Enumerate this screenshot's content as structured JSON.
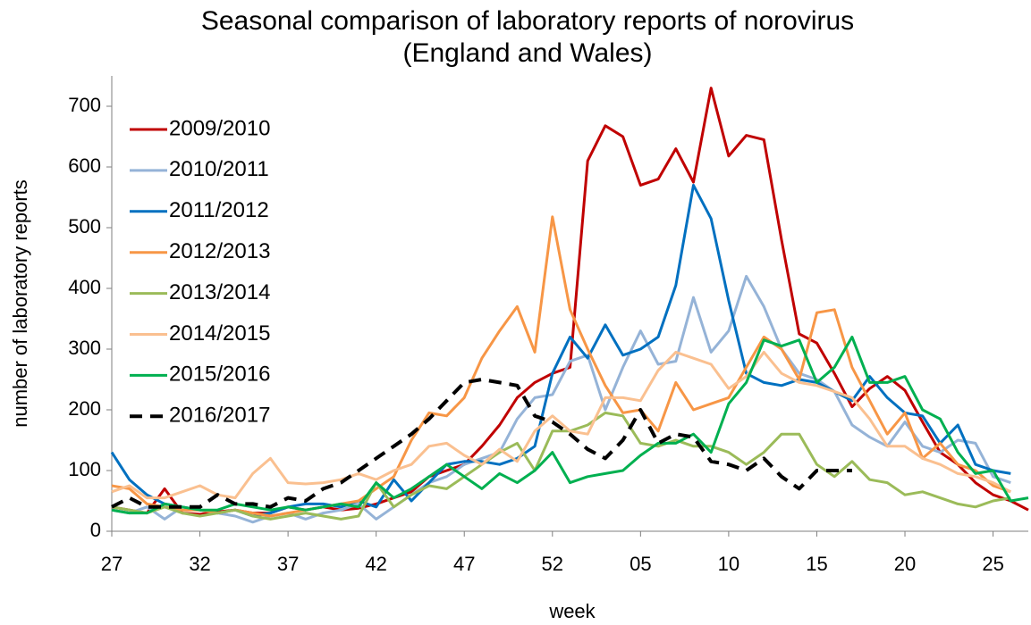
{
  "chart_data": {
    "type": "line",
    "title": "Seasonal comparison of laboratory reports of norovirus (England and Wales)",
    "x_label": "week",
    "y_label": "number of laboratory reports",
    "categories": [
      "27",
      null,
      null,
      null,
      null,
      "32",
      null,
      null,
      null,
      null,
      "37",
      null,
      null,
      null,
      null,
      "42",
      null,
      null,
      null,
      null,
      "47",
      null,
      null,
      null,
      null,
      "52",
      null,
      null,
      null,
      null,
      "05",
      null,
      null,
      null,
      null,
      "10",
      null,
      null,
      null,
      null,
      "15",
      null,
      null,
      null,
      null,
      "20",
      null,
      null,
      null,
      null,
      "25",
      null,
      null
    ],
    "ylim": [
      0,
      750
    ],
    "yticks": [
      0,
      100,
      200,
      300,
      400,
      500,
      600,
      700
    ],
    "legend": "upper left",
    "series": [
      {
        "name": "2009/2010",
        "color": "#c00000",
        "values": [
          40,
          35,
          30,
          70,
          30,
          28,
          32,
          35,
          30,
          30,
          40,
          35,
          40,
          35,
          38,
          45,
          55,
          65,
          90,
          100,
          110,
          140,
          175,
          220,
          245,
          260,
          270,
          610,
          668,
          650,
          570,
          580,
          630,
          575,
          730,
          618,
          652,
          645,
          480,
          325,
          310,
          260,
          205,
          235,
          255,
          232,
          180,
          130,
          110,
          80,
          60,
          50,
          35
        ]
      },
      {
        "name": "2010/2011",
        "color": "#95b3d7",
        "values": [
          35,
          30,
          40,
          20,
          40,
          35,
          30,
          25,
          15,
          25,
          30,
          20,
          30,
          35,
          45,
          20,
          40,
          60,
          80,
          90,
          110,
          120,
          130,
          185,
          220,
          225,
          280,
          290,
          200,
          270,
          330,
          275,
          280,
          385,
          295,
          330,
          420,
          370,
          300,
          260,
          250,
          230,
          175,
          155,
          140,
          180,
          140,
          130,
          150,
          145,
          90,
          80,
          null
        ]
      },
      {
        "name": "2011/2012",
        "color": "#0070c0",
        "values": [
          130,
          85,
          60,
          45,
          40,
          35,
          30,
          35,
          25,
          30,
          40,
          45,
          45,
          40,
          50,
          40,
          85,
          50,
          80,
          110,
          115,
          115,
          110,
          120,
          140,
          260,
          320,
          285,
          340,
          290,
          300,
          320,
          405,
          570,
          515,
          380,
          260,
          245,
          240,
          250,
          245,
          230,
          215,
          255,
          220,
          195,
          190,
          145,
          175,
          110,
          100,
          95,
          null
        ]
      },
      {
        "name": "2012/2013",
        "color": "#f79646",
        "values": [
          75,
          70,
          45,
          40,
          35,
          35,
          30,
          35,
          30,
          25,
          30,
          35,
          40,
          45,
          50,
          70,
          90,
          150,
          195,
          190,
          220,
          285,
          330,
          370,
          295,
          518,
          365,
          300,
          240,
          195,
          200,
          165,
          245,
          200,
          210,
          220,
          270,
          320,
          300,
          250,
          360,
          365,
          270,
          215,
          160,
          195,
          120,
          145,
          110,
          100,
          75,
          65,
          null
        ]
      },
      {
        "name": "2013/2014",
        "color": "#9bbb59",
        "values": [
          40,
          35,
          30,
          40,
          30,
          25,
          30,
          35,
          25,
          20,
          25,
          30,
          25,
          20,
          25,
          80,
          40,
          60,
          75,
          70,
          90,
          110,
          130,
          145,
          100,
          165,
          165,
          175,
          195,
          190,
          145,
          140,
          150,
          140,
          140,
          130,
          110,
          130,
          160,
          160,
          110,
          90,
          115,
          85,
          80,
          60,
          65,
          55,
          45,
          40,
          50,
          55,
          null
        ]
      },
      {
        "name": "2014/2015",
        "color": "#fac090",
        "values": [
          65,
          75,
          55,
          55,
          65,
          75,
          60,
          55,
          95,
          120,
          80,
          78,
          80,
          85,
          95,
          85,
          100,
          110,
          140,
          145,
          125,
          110,
          135,
          115,
          165,
          190,
          165,
          160,
          220,
          220,
          215,
          265,
          295,
          285,
          275,
          235,
          255,
          295,
          260,
          245,
          240,
          230,
          220,
          185,
          140,
          140,
          120,
          110,
          95,
          90,
          80,
          65,
          null
        ]
      },
      {
        "name": "2015/2016",
        "color": "#00b050",
        "values": [
          35,
          30,
          30,
          45,
          40,
          35,
          35,
          45,
          40,
          35,
          40,
          35,
          40,
          45,
          40,
          80,
          55,
          70,
          90,
          110,
          90,
          70,
          95,
          80,
          100,
          130,
          80,
          90,
          95,
          100,
          125,
          145,
          145,
          160,
          130,
          210,
          245,
          315,
          305,
          315,
          245,
          270,
          320,
          245,
          245,
          255,
          200,
          185,
          130,
          95,
          100,
          50,
          55
        ]
      },
      {
        "name": "2016/2017",
        "color": "#000000",
        "line_style": "dashed",
        "values": [
          40,
          55,
          40,
          40,
          40,
          40,
          60,
          45,
          45,
          40,
          55,
          50,
          70,
          80,
          100,
          120,
          140,
          160,
          185,
          215,
          245,
          250,
          245,
          240,
          190,
          180,
          160,
          135,
          120,
          150,
          200,
          145,
          160,
          155,
          115,
          110,
          100,
          120,
          90,
          70,
          100,
          100,
          100,
          null,
          null,
          null,
          null,
          null,
          null,
          null,
          null,
          null,
          null
        ]
      }
    ]
  }
}
